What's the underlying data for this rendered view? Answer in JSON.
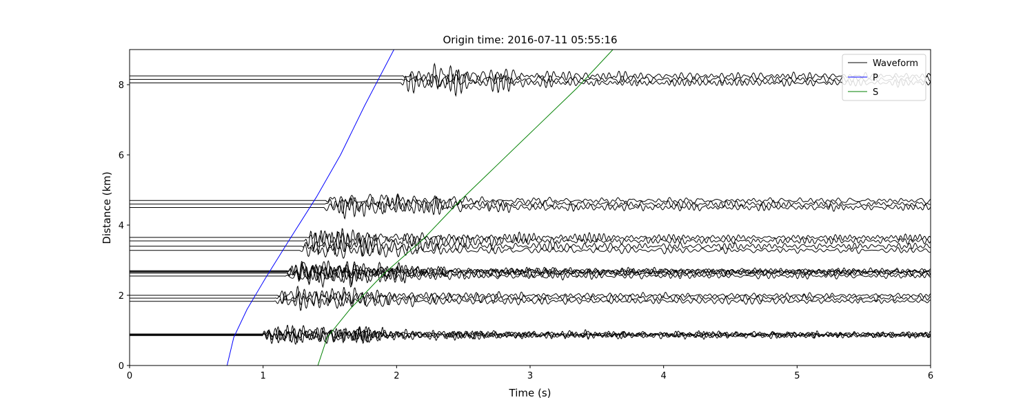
{
  "chart_data": {
    "type": "line",
    "title": "Origin time: 2016-07-11 05:55:16",
    "xlabel": "Time (s)",
    "ylabel": "Distance (km)",
    "xlim": [
      0,
      6
    ],
    "ylim": [
      0,
      9
    ],
    "xticks": [
      0,
      1,
      2,
      3,
      4,
      5,
      6
    ],
    "yticks": [
      0,
      2,
      4,
      6,
      8
    ],
    "grid": false,
    "legend_position": "top-right",
    "legend": [
      {
        "name": "Waveform",
        "color": "#000000"
      },
      {
        "name": "P",
        "color": "#0000ff"
      },
      {
        "name": "S",
        "color": "#008000"
      }
    ],
    "traces": [
      {
        "distance": 0.85,
        "onset": 0.99,
        "amplitude": 0.32
      },
      {
        "distance": 0.87,
        "onset": 0.99,
        "amplitude": 0.3
      },
      {
        "distance": 0.88,
        "onset": 1.0,
        "amplitude": 0.34
      },
      {
        "distance": 0.9,
        "onset": 1.0,
        "amplitude": 0.28
      },
      {
        "distance": 1.83,
        "onset": 1.08,
        "amplitude": 0.3
      },
      {
        "distance": 1.92,
        "onset": 1.09,
        "amplitude": 0.32
      },
      {
        "distance": 2.0,
        "onset": 1.1,
        "amplitude": 0.28
      },
      {
        "distance": 2.55,
        "onset": 1.16,
        "amplitude": 0.3
      },
      {
        "distance": 2.63,
        "onset": 1.17,
        "amplitude": 0.36
      },
      {
        "distance": 2.66,
        "onset": 1.17,
        "amplitude": 0.34
      },
      {
        "distance": 2.68,
        "onset": 1.18,
        "amplitude": 0.32
      },
      {
        "distance": 2.7,
        "onset": 1.18,
        "amplitude": 0.3
      },
      {
        "distance": 3.28,
        "onset": 1.27,
        "amplitude": 0.3
      },
      {
        "distance": 3.4,
        "onset": 1.29,
        "amplitude": 0.34
      },
      {
        "distance": 3.55,
        "onset": 1.31,
        "amplitude": 0.36
      },
      {
        "distance": 3.65,
        "onset": 1.33,
        "amplitude": 0.32
      },
      {
        "distance": 4.5,
        "onset": 1.45,
        "amplitude": 0.34
      },
      {
        "distance": 4.6,
        "onset": 1.46,
        "amplitude": 0.3
      },
      {
        "distance": 4.7,
        "onset": 1.47,
        "amplitude": 0.28
      },
      {
        "distance": 8.05,
        "onset": 2.02,
        "amplitude": 0.34
      },
      {
        "distance": 8.15,
        "onset": 2.03,
        "amplitude": 0.3
      },
      {
        "distance": 8.25,
        "onset": 2.04,
        "amplitude": 0.32
      }
    ],
    "p_curve": {
      "name": "P",
      "color": "#0000ff",
      "points": [
        [
          0.73,
          0
        ],
        [
          0.78,
          0.8
        ],
        [
          0.88,
          1.6
        ],
        [
          1.02,
          2.5
        ],
        [
          1.2,
          3.6
        ],
        [
          1.4,
          4.8
        ],
        [
          1.58,
          6.0
        ],
        [
          1.76,
          7.4
        ],
        [
          1.98,
          9.0
        ]
      ]
    },
    "s_curve": {
      "name": "S",
      "color": "#008000",
      "points": [
        [
          1.41,
          0
        ],
        [
          1.48,
          0.8
        ],
        [
          1.65,
          1.6
        ],
        [
          1.9,
          2.6
        ],
        [
          2.2,
          3.6
        ],
        [
          2.45,
          4.6
        ],
        [
          2.75,
          5.7
        ],
        [
          3.05,
          6.8
        ],
        [
          3.35,
          7.9
        ],
        [
          3.62,
          9.0
        ]
      ]
    }
  }
}
